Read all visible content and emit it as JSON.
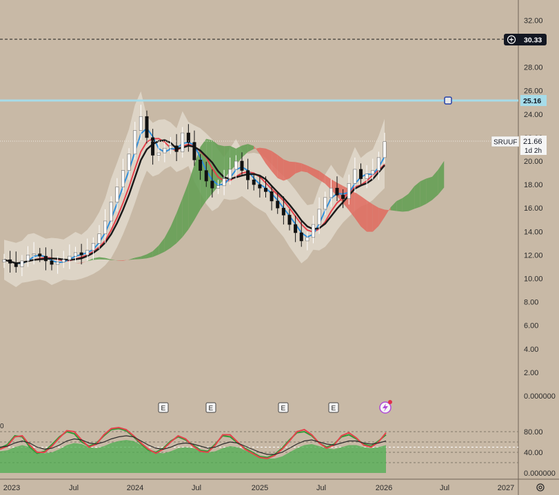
{
  "chart_data": [
    {
      "type": "candlestick",
      "symbol": "SRUUF",
      "price_axis": {
        "ticks": [
          "32.00",
          "28.00",
          "26.00",
          "24.00",
          "22.00",
          "20.00",
          "18.00",
          "16.00",
          "14.00",
          "12.00",
          "10.00",
          "8.00",
          "6.00",
          "4.00",
          "2.00",
          "0.000000"
        ],
        "ylim": [
          0,
          33
        ]
      },
      "time_axis": {
        "ticks": [
          "2023",
          "Jul",
          "2024",
          "Jul",
          "2025",
          "Jul",
          "2026",
          "Jul",
          "2027"
        ]
      },
      "last_price": {
        "value": "21.66",
        "countdown": "1d 2h"
      },
      "alert_line": {
        "value": "30.33"
      },
      "horizontal_line": {
        "value": "25.16",
        "color": "#a6dce9"
      },
      "closes_estimated": [
        11.6,
        11.3,
        11.0,
        11.5,
        12.0,
        12.1,
        11.9,
        11.5,
        11.2,
        11.4,
        11.6,
        11.9,
        12.2,
        12.0,
        12.4,
        13.0,
        13.8,
        14.9,
        16.5,
        17.8,
        19.2,
        20.6,
        22.6,
        23.8,
        22.0,
        20.5,
        20.7,
        21.1,
        21.3,
        20.8,
        22.4,
        21.6,
        20.1,
        19.2,
        18.3,
        17.7,
        17.9,
        18.5,
        19.3,
        20.0,
        19.2,
        18.4,
        18.0,
        17.7,
        17.4,
        16.6,
        16.0,
        15.4,
        14.6,
        13.9,
        13.2,
        13.5,
        14.6,
        15.9,
        16.9,
        17.7,
        17.1,
        16.8,
        18.1,
        19.3,
        18.5,
        18.9,
        19.2,
        20.3,
        21.66
      ],
      "series": [
        {
          "name": "",
          "color": "#2f8fdc",
          "role": "conversion line"
        },
        {
          "name": "",
          "color": "#e5414b",
          "role": "base line"
        },
        {
          "name": "",
          "color": "#1b1b1b",
          "role": "moving average"
        }
      ],
      "events": [
        "E",
        "E",
        "E",
        "E"
      ],
      "grid": false
    },
    {
      "type": "line",
      "role": "oscillator pane",
      "ticks": [
        "80.00",
        "40.00",
        "0.000000"
      ],
      "ylim": [
        0,
        100
      ],
      "levels": [
        80,
        60,
        50,
        40,
        20
      ],
      "series": [
        {
          "name": "",
          "color": "#2e9d37",
          "values": [
            48,
            55,
            72,
            70,
            50,
            38,
            42,
            55,
            70,
            80,
            76,
            60,
            52,
            58,
            72,
            84,
            86,
            82,
            70,
            56,
            44,
            40,
            48,
            62,
            70,
            64,
            54,
            44,
            42,
            56,
            72,
            70,
            58,
            48,
            40,
            32,
            30,
            36,
            48,
            64,
            78,
            80,
            72,
            58,
            50,
            56,
            70,
            74,
            66,
            56,
            52,
            62,
            74
          ]
        },
        {
          "name": "",
          "color": "#e5414b",
          "values": [
            46,
            52,
            70,
            72,
            54,
            40,
            40,
            52,
            68,
            82,
            80,
            64,
            50,
            56,
            74,
            86,
            88,
            84,
            72,
            58,
            46,
            38,
            46,
            60,
            72,
            66,
            52,
            42,
            40,
            54,
            74,
            74,
            60,
            46,
            38,
            30,
            28,
            34,
            46,
            62,
            80,
            84,
            74,
            58,
            48,
            54,
            72,
            78,
            68,
            54,
            50,
            60,
            78
          ]
        },
        {
          "name": "",
          "color": "#2b2b2b",
          "values": [
            50,
            52,
            58,
            62,
            58,
            50,
            46,
            48,
            54,
            62,
            66,
            64,
            58,
            56,
            60,
            66,
            70,
            72,
            70,
            62,
            54,
            48,
            46,
            50,
            56,
            58,
            56,
            52,
            48,
            50,
            56,
            60,
            58,
            52,
            46,
            40,
            36,
            36,
            40,
            48,
            56,
            62,
            64,
            60,
            56,
            54,
            58,
            62,
            62,
            58,
            56,
            58,
            62
          ]
        }
      ],
      "volume_area_color": "#4caf50"
    }
  ],
  "ui": {
    "alert_plus_icon": "plus-circle-icon",
    "settings_icon": "gear-icon",
    "event_icon": "lightning-icon",
    "partial_label": "0"
  },
  "colors": {
    "background": "#c8b9a6",
    "bull_cloud": "#5f9e50",
    "bear_cloud": "#e06a5e",
    "bands": "#e4ddd0",
    "candle_up": "#ffffff",
    "candle_down": "#111111"
  }
}
